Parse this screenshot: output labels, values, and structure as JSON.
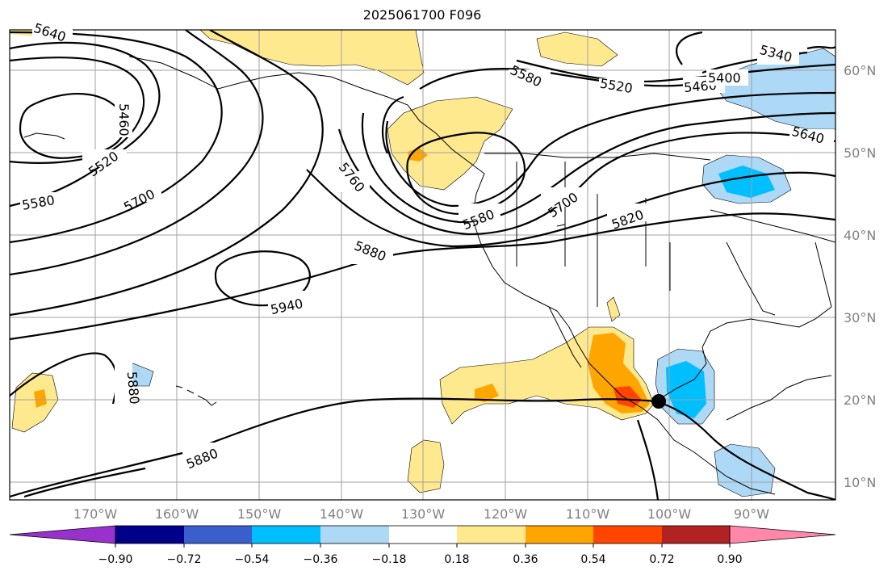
{
  "title": "2025061700 F096",
  "lat_labels": [
    "60°N",
    "50°N",
    "40°N",
    "30°N",
    "20°N",
    "10°N"
  ],
  "lon_labels": [
    "170°W",
    "160°W",
    "150°W",
    "140°W",
    "130°W",
    "120°W",
    "110°W",
    "100°W",
    "90°W"
  ],
  "contour_labels": [
    "5640",
    "5460",
    "5520",
    "5580",
    "5700",
    "5760",
    "5580",
    "5700",
    "5820",
    "5880",
    "5940",
    "5880",
    "5880",
    "5580",
    "5520",
    "5460",
    "5400",
    "5340",
    "5640"
  ],
  "colorbar": {
    "ticks": [
      "−0.90",
      "−0.72",
      "−0.54",
      "−0.36",
      "−0.18",
      "0.18",
      "0.36",
      "0.54",
      "0.72",
      "0.90"
    ],
    "colors": [
      "#9932cc",
      "#00008b",
      "#3a5fcd",
      "#00bfff",
      "#add8f6",
      "#ffffff",
      "#ffe98f",
      "#ffa500",
      "#ff4500",
      "#b22222",
      "#ff88aa"
    ]
  }
}
